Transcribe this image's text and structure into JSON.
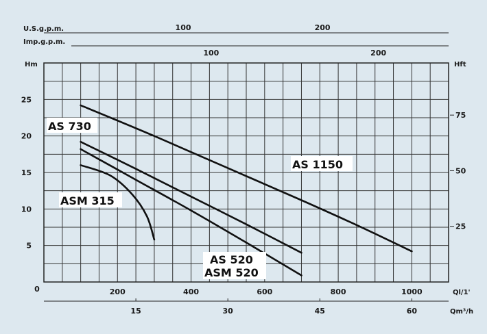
{
  "chart_data": {
    "type": "line",
    "units": {
      "usgpm": "U.S.g.p.m.",
      "impgpm": "Imp.g.p.m.",
      "head_left": "Hm",
      "head_right": "Hft",
      "flow_lpm": "Ql/1'",
      "flow_m3h": "Qm³/h"
    },
    "axes": {
      "x_lpm": {
        "min": 0,
        "max": 1100,
        "ticks": [
          200,
          400,
          600,
          800,
          1000
        ]
      },
      "x_m3h": {
        "ticks": [
          15,
          30,
          45,
          60
        ]
      },
      "x_usgpm": {
        "ticks": [
          100,
          200
        ]
      },
      "x_impgpm": {
        "ticks": [
          100,
          200
        ]
      },
      "y_m": {
        "min": 0,
        "max": 30,
        "ticks": [
          0,
          5,
          10,
          15,
          20,
          25
        ]
      },
      "y_ft": {
        "ticks": [
          25,
          50,
          75
        ]
      },
      "grid": true
    },
    "series": [
      {
        "name": "AS 1150",
        "x": [
          100,
          300,
          500,
          700,
          850,
          1000
        ],
        "y": [
          24.2,
          20.0,
          15.6,
          11.2,
          7.8,
          4.2
        ]
      },
      {
        "name": "AS 730",
        "x": [
          100,
          250,
          400,
          550,
          700
        ],
        "y": [
          19.2,
          15.5,
          11.7,
          7.9,
          4.0
        ]
      },
      {
        "name": "AS 520 / ASM 520",
        "x": [
          100,
          250,
          400,
          550,
          700
        ],
        "y": [
          18.2,
          14.0,
          9.8,
          5.4,
          0.9
        ]
      },
      {
        "name": "ASM 315",
        "x": [
          100,
          180,
          240,
          280,
          300
        ],
        "y": [
          16.0,
          14.6,
          12.0,
          9.0,
          5.8
        ]
      }
    ],
    "curve_labels": [
      "AS 1150",
      "AS 730",
      "AS 520",
      "ASM 520",
      "ASM 315"
    ]
  }
}
